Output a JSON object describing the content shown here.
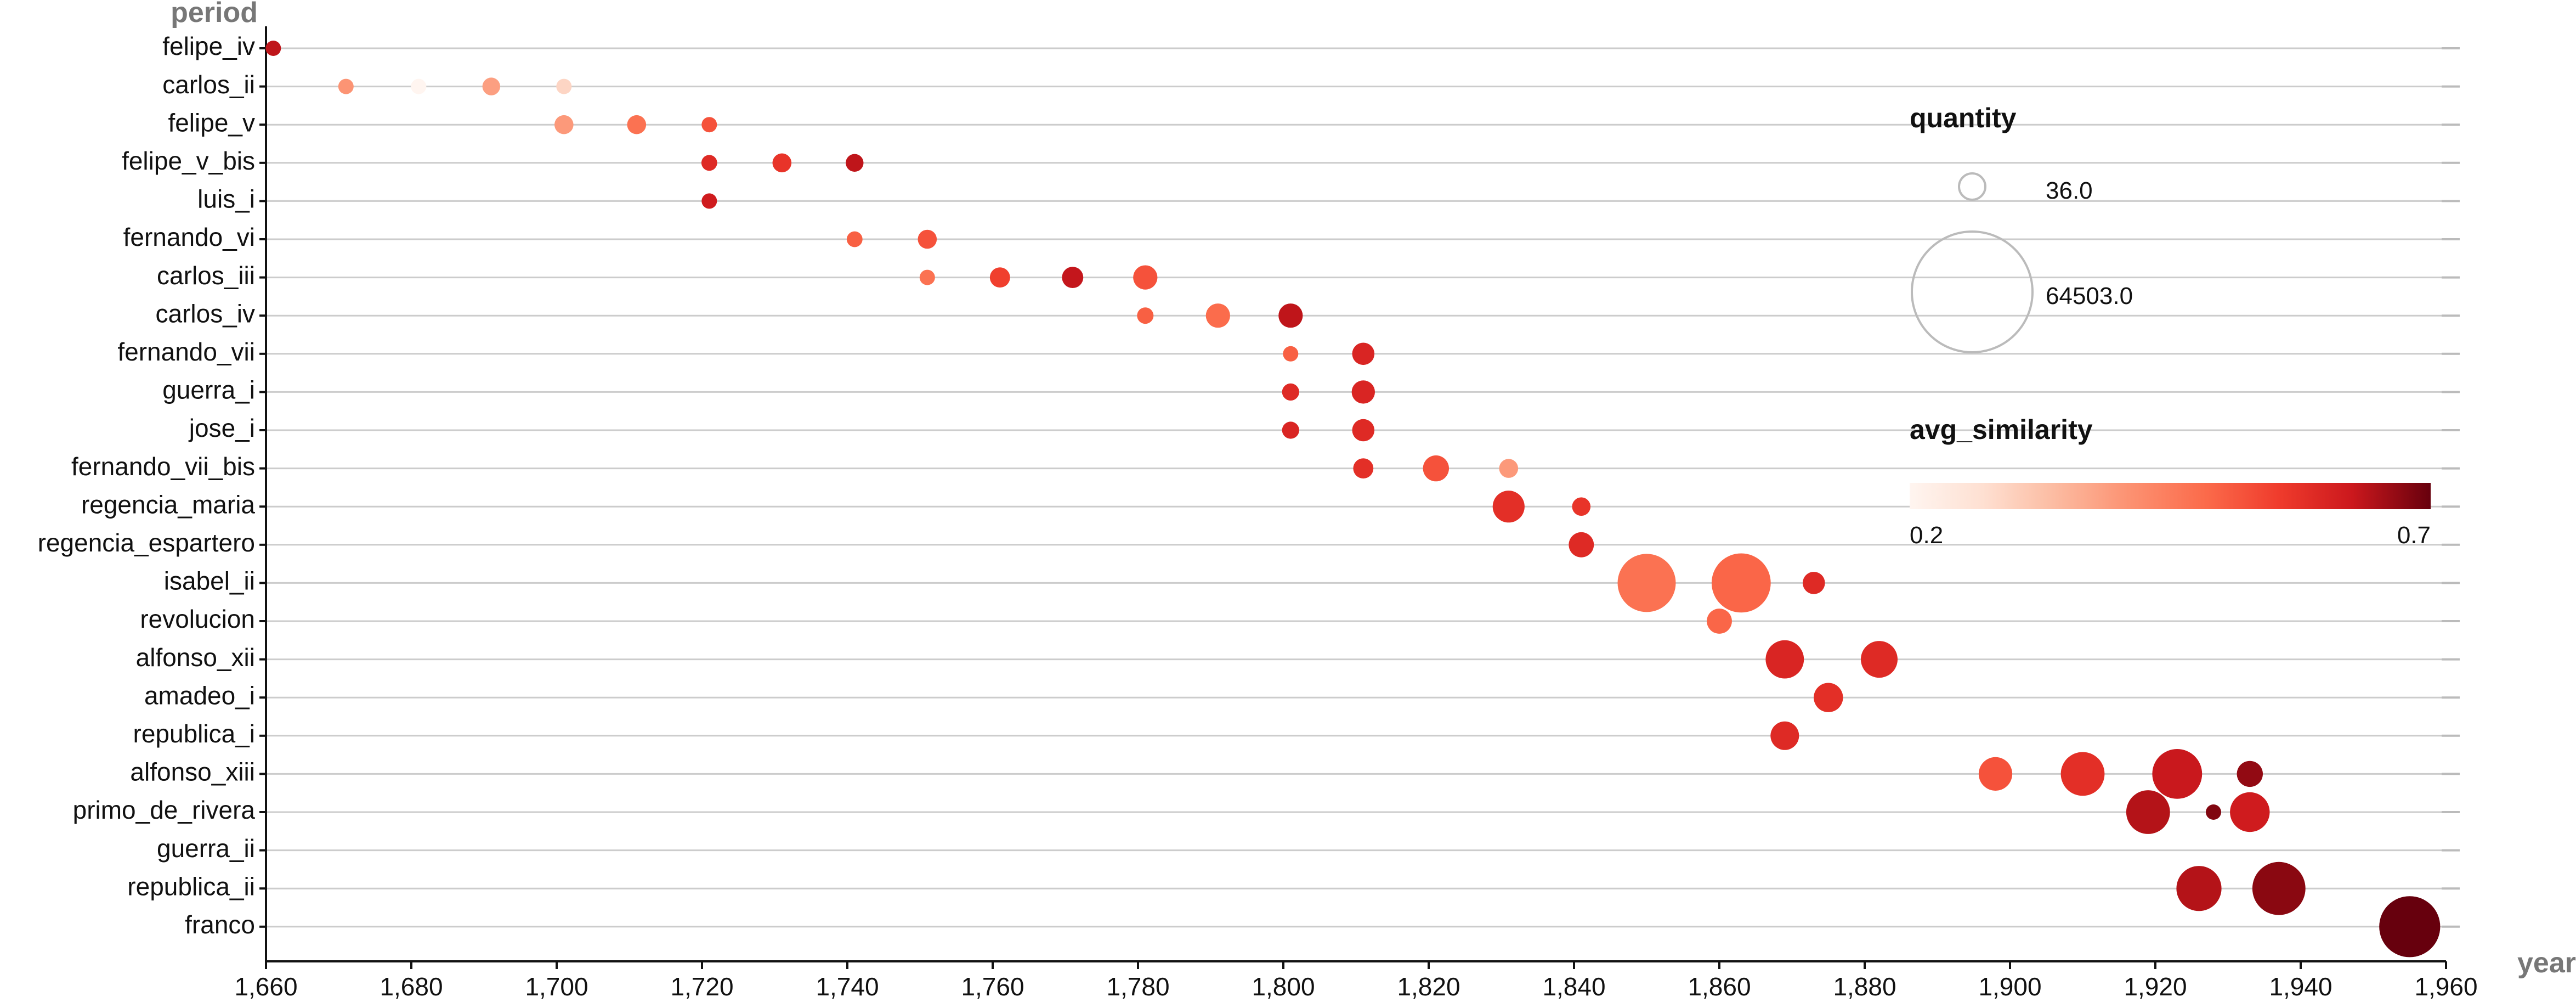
{
  "chart_data": {
    "type": "scatter",
    "title": "",
    "xlabel": "year",
    "ylabel": "period",
    "xlim": [
      1660,
      1960
    ],
    "x_ticks": [
      1660,
      1680,
      1700,
      1720,
      1740,
      1760,
      1780,
      1800,
      1820,
      1840,
      1860,
      1880,
      1900,
      1920,
      1940,
      1960
    ],
    "x_tick_labels": [
      "1,660",
      "1,680",
      "1,700",
      "1,720",
      "1,740",
      "1,760",
      "1,780",
      "1,800",
      "1,820",
      "1,840",
      "1,860",
      "1,880",
      "1,900",
      "1,920",
      "1,940",
      "1,960"
    ],
    "categories": [
      "felipe_iv",
      "carlos_ii",
      "felipe_v",
      "felipe_v_bis",
      "luis_i",
      "fernando_vi",
      "carlos_iii",
      "carlos_iv",
      "fernando_vii",
      "guerra_i",
      "jose_i",
      "fernando_vii_bis",
      "regencia_maria",
      "regencia_espartero",
      "isabel_ii",
      "revolucion",
      "alfonso_xii",
      "amadeo_i",
      "republica_i",
      "alfonso_xiii",
      "primo_de_rivera",
      "guerra_ii",
      "republica_ii",
      "franco"
    ],
    "grid": true,
    "size_encoding": "quantity",
    "color_encoding": "avg_similarity",
    "legend_position": "right",
    "legend": {
      "size_title": "quantity",
      "size_entries": [
        {
          "label": "36.0",
          "value": 36.0
        },
        {
          "label": "64503.0",
          "value": 64503.0
        }
      ],
      "color_title": "avg_similarity",
      "color_min_label": "0.2",
      "color_max_label": "0.7",
      "color_range": [
        0.2,
        0.7
      ],
      "color_scale": [
        "#fff5f0",
        "#fcbba1",
        "#fc9272",
        "#fb6a4a",
        "#ef3b2c",
        "#cb181d",
        "#a50f15",
        "#67000d"
      ]
    },
    "points": [
      {
        "period": "felipe_iv",
        "x": 1661,
        "quantity": 500,
        "avg_similarity": 0.58
      },
      {
        "period": "carlos_ii",
        "x": 1671,
        "quantity": 1000,
        "avg_similarity": 0.34
      },
      {
        "period": "carlos_ii",
        "x": 1681,
        "quantity": 800,
        "avg_similarity": 0.2
      },
      {
        "period": "carlos_ii",
        "x": 1691,
        "quantity": 1400,
        "avg_similarity": 0.32
      },
      {
        "period": "carlos_ii",
        "x": 1701,
        "quantity": 600,
        "avg_similarity": 0.24
      },
      {
        "period": "felipe_v",
        "x": 1701,
        "quantity": 1600,
        "avg_similarity": 0.33
      },
      {
        "period": "felipe_v",
        "x": 1711,
        "quantity": 1600,
        "avg_similarity": 0.4
      },
      {
        "period": "felipe_v",
        "x": 1721,
        "quantity": 1000,
        "avg_similarity": 0.45
      },
      {
        "period": "felipe_v_bis",
        "x": 1721,
        "quantity": 1100,
        "avg_similarity": 0.52
      },
      {
        "period": "felipe_v_bis",
        "x": 1731,
        "quantity": 1600,
        "avg_similarity": 0.5
      },
      {
        "period": "felipe_v_bis",
        "x": 1741,
        "quantity": 1400,
        "avg_similarity": 0.58
      },
      {
        "period": "luis_i",
        "x": 1721,
        "quantity": 700,
        "avg_similarity": 0.55
      },
      {
        "period": "fernando_vi",
        "x": 1741,
        "quantity": 1100,
        "avg_similarity": 0.43
      },
      {
        "period": "fernando_vi",
        "x": 1751,
        "quantity": 1600,
        "avg_similarity": 0.45
      },
      {
        "period": "carlos_iii",
        "x": 1751,
        "quantity": 700,
        "avg_similarity": 0.4
      },
      {
        "period": "carlos_iii",
        "x": 1761,
        "quantity": 1800,
        "avg_similarity": 0.48
      },
      {
        "period": "carlos_iii",
        "x": 1771,
        "quantity": 2000,
        "avg_similarity": 0.57
      },
      {
        "period": "carlos_iii",
        "x": 1781,
        "quantity": 2600,
        "avg_similarity": 0.45
      },
      {
        "period": "carlos_iv",
        "x": 1781,
        "quantity": 1200,
        "avg_similarity": 0.43
      },
      {
        "period": "carlos_iv",
        "x": 1791,
        "quantity": 2600,
        "avg_similarity": 0.41
      },
      {
        "period": "carlos_iv",
        "x": 1801,
        "quantity": 2600,
        "avg_similarity": 0.58
      },
      {
        "period": "fernando_vii",
        "x": 1801,
        "quantity": 700,
        "avg_similarity": 0.43
      },
      {
        "period": "fernando_vii",
        "x": 1811,
        "quantity": 2200,
        "avg_similarity": 0.53
      },
      {
        "period": "guerra_i",
        "x": 1801,
        "quantity": 1300,
        "avg_similarity": 0.52
      },
      {
        "period": "guerra_i",
        "x": 1811,
        "quantity": 2400,
        "avg_similarity": 0.53
      },
      {
        "period": "jose_i",
        "x": 1801,
        "quantity": 1300,
        "avg_similarity": 0.53
      },
      {
        "period": "jose_i",
        "x": 1811,
        "quantity": 2200,
        "avg_similarity": 0.52
      },
      {
        "period": "fernando_vii_bis",
        "x": 1811,
        "quantity": 1800,
        "avg_similarity": 0.51
      },
      {
        "period": "fernando_vii_bis",
        "x": 1821,
        "quantity": 3000,
        "avg_similarity": 0.45
      },
      {
        "period": "fernando_vii_bis",
        "x": 1831,
        "quantity": 1600,
        "avg_similarity": 0.33
      },
      {
        "period": "regencia_maria",
        "x": 1831,
        "quantity": 4500,
        "avg_similarity": 0.51
      },
      {
        "period": "regencia_maria",
        "x": 1841,
        "quantity": 1500,
        "avg_similarity": 0.5
      },
      {
        "period": "regencia_espartero",
        "x": 1841,
        "quantity": 2800,
        "avg_similarity": 0.52
      },
      {
        "period": "isabel_ii",
        "x": 1850,
        "quantity": 15000,
        "avg_similarity": 0.4
      },
      {
        "period": "isabel_ii",
        "x": 1863,
        "quantity": 15500,
        "avg_similarity": 0.42
      },
      {
        "period": "isabel_ii",
        "x": 1873,
        "quantity": 2200,
        "avg_similarity": 0.52
      },
      {
        "period": "revolucion",
        "x": 1860,
        "quantity": 2800,
        "avg_similarity": 0.42
      },
      {
        "period": "alfonso_xii",
        "x": 1869,
        "quantity": 6500,
        "avg_similarity": 0.53
      },
      {
        "period": "alfonso_xii",
        "x": 1882,
        "quantity": 6000,
        "avg_similarity": 0.52
      },
      {
        "period": "amadeo_i",
        "x": 1875,
        "quantity": 3800,
        "avg_similarity": 0.51
      },
      {
        "period": "republica_i",
        "x": 1869,
        "quantity": 3600,
        "avg_similarity": 0.52
      },
      {
        "period": "alfonso_xiii",
        "x": 1898,
        "quantity": 5000,
        "avg_similarity": 0.45
      },
      {
        "period": "alfonso_xiii",
        "x": 1910,
        "quantity": 8500,
        "avg_similarity": 0.51
      },
      {
        "period": "alfonso_xiii",
        "x": 1923,
        "quantity": 11000,
        "avg_similarity": 0.56
      },
      {
        "period": "alfonso_xiii",
        "x": 1933,
        "quantity": 3000,
        "avg_similarity": 0.65
      },
      {
        "period": "primo_de_rivera",
        "x": 1919,
        "quantity": 8500,
        "avg_similarity": 0.6
      },
      {
        "period": "primo_de_rivera",
        "x": 1928,
        "quantity": 1000,
        "avg_similarity": 0.67
      },
      {
        "period": "primo_de_rivera",
        "x": 1933,
        "quantity": 7000,
        "avg_similarity": 0.55
      },
      {
        "period": "republica_ii",
        "x": 1926,
        "quantity": 9000,
        "avg_similarity": 0.6
      },
      {
        "period": "republica_ii",
        "x": 1937,
        "quantity": 12500,
        "avg_similarity": 0.66
      },
      {
        "period": "franco",
        "x": 1955,
        "quantity": 16500,
        "avg_similarity": 0.72
      }
    ]
  }
}
